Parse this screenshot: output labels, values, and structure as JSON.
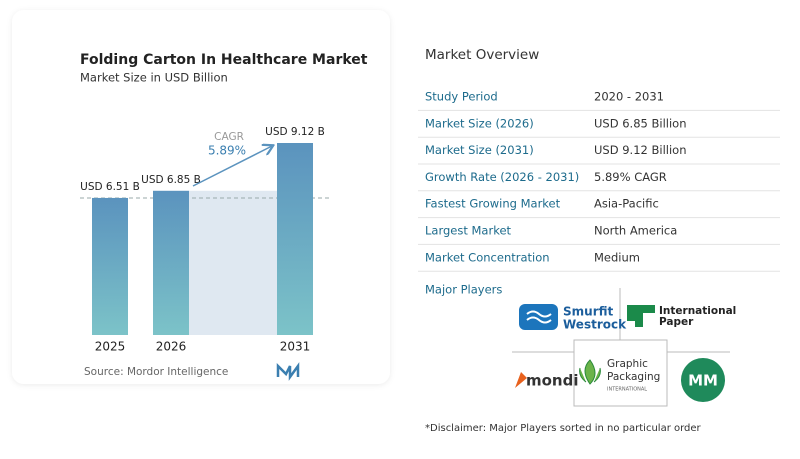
{
  "chart_data": {
    "type": "bar",
    "title": "Folding Carton In Healthcare Market",
    "subtitle": "Market Size in USD Billion",
    "categories": [
      "2025",
      "2026",
      "2031"
    ],
    "values": [
      6.51,
      6.85,
      9.12
    ],
    "value_labels": [
      "USD 6.51 B",
      "USD 6.85 B",
      "USD 9.12 B"
    ],
    "annotation": {
      "label": "CAGR",
      "value": "5.89%"
    },
    "source": "Source: Mordor Intelligence"
  },
  "overview": {
    "title": "Market Overview",
    "rows": [
      [
        "Study Period",
        "2020 - 2031"
      ],
      [
        "Market Size (2026)",
        "USD 6.85 Billion"
      ],
      [
        "Market Size (2031)",
        "USD 9.12 Billion"
      ],
      [
        "Growth Rate (2026 - 2031)",
        "5.89% CAGR"
      ],
      [
        "Fastest Growing Market",
        "Asia-Pacific"
      ],
      [
        "Largest Market",
        "North America"
      ],
      [
        "Market Concentration",
        "Medium"
      ]
    ]
  },
  "major_players": {
    "title": "Major Players",
    "logos": [
      [
        "Smurfit",
        "Westrock"
      ],
      [
        "International",
        "Paper"
      ],
      [
        "mondi"
      ],
      [
        "Graphic",
        "Packaging",
        "INTERNATIONAL"
      ],
      [
        "MM"
      ]
    ]
  },
  "disclaimer": "*Disclaimer: Major Players sorted in no particular order"
}
